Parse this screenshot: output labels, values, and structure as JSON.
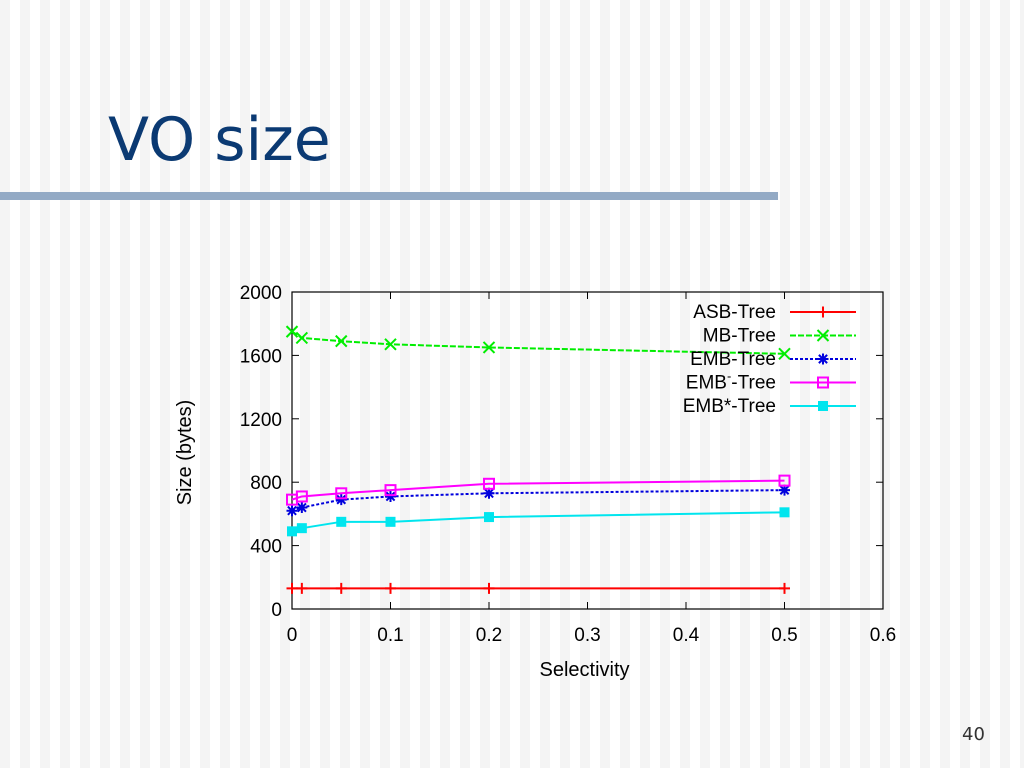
{
  "slide": {
    "title": "VO size",
    "page_number": "40"
  },
  "chart_data": {
    "type": "line",
    "xlabel": "Selectivity",
    "ylabel": "Size (bytes)",
    "xlim": [
      0,
      0.6
    ],
    "ylim": [
      0,
      2000
    ],
    "x_ticks": [
      "0",
      "0.1",
      "0.2",
      "0.3",
      "0.4",
      "0.5",
      "0.6"
    ],
    "y_ticks": [
      "0",
      "400",
      "800",
      "1200",
      "1600",
      "2000"
    ],
    "legend_position": "top-right",
    "grid": false,
    "x": [
      0,
      0.01,
      0.05,
      0.1,
      0.2,
      0.5
    ],
    "series": [
      {
        "name": "ASB-Tree",
        "legend_base": "ASB-Tree",
        "legend_sup": "",
        "legend_suffix": "",
        "color": "#ff0000",
        "marker": "plus",
        "dash": "",
        "values": [
          130,
          130,
          130,
          130,
          130,
          130
        ]
      },
      {
        "name": "MB-Tree",
        "legend_base": "MB-Tree",
        "legend_sup": "",
        "legend_suffix": "",
        "color": "#00ee00",
        "marker": "cross",
        "dash": "6,2",
        "values": [
          1750,
          1710,
          1690,
          1670,
          1650,
          1610
        ]
      },
      {
        "name": "EMB-Tree",
        "legend_base": "EMB-Tree",
        "legend_sup": "",
        "legend_suffix": "",
        "color": "#0000dd",
        "marker": "star",
        "dash": "3,2",
        "values": [
          620,
          640,
          690,
          710,
          730,
          750
        ]
      },
      {
        "name": "EMB--Tree",
        "legend_base": "EMB",
        "legend_sup": "-",
        "legend_suffix": "-Tree",
        "color": "#ff00ff",
        "marker": "square-open",
        "dash": "",
        "values": [
          690,
          710,
          730,
          750,
          790,
          810
        ]
      },
      {
        "name": "EMB*-Tree",
        "legend_base": "EMB*-Tree",
        "legend_sup": "",
        "legend_suffix": "",
        "color": "#00e5ee",
        "marker": "square-filled",
        "dash": "",
        "values": [
          490,
          510,
          550,
          550,
          580,
          610
        ]
      }
    ]
  }
}
